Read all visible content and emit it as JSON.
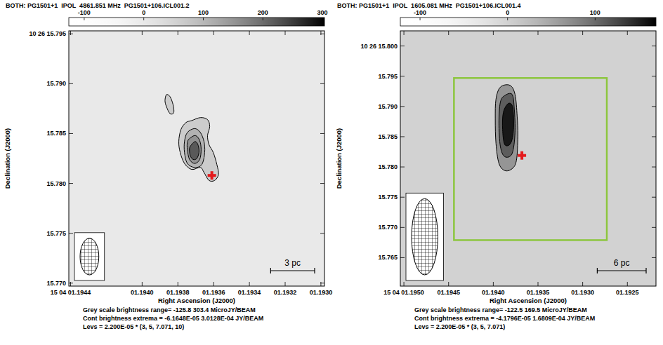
{
  "chart_data": [
    {
      "type": "contour",
      "title": "BOTH: PG1501+1  IPOL  4861.851 MHz  PG1501+106.ICL001.2",
      "x_label": "Right Ascension (J2000)",
      "y_label": "Declination (J2000)",
      "xlim": [
        1.19441,
        1.19298
      ],
      "xticks": [
        {
          "value": 1.1944,
          "label": "15 04 01.1944"
        },
        {
          "value": 1.194,
          "label": "01.1940"
        },
        {
          "value": 1.1938,
          "label": "01.1938"
        },
        {
          "value": 1.1936,
          "label": "01.1936"
        },
        {
          "value": 1.1934,
          "label": "01.1934"
        },
        {
          "value": 1.1932,
          "label": "01.1932"
        },
        {
          "value": 1.193,
          "label": "01.1930"
        }
      ],
      "ylim": [
        15.7697,
        15.7953
      ],
      "yticks": [
        {
          "value": 15.795,
          "label": "10 26 15.795"
        },
        {
          "value": 15.79,
          "label": "15.790"
        },
        {
          "value": 15.785,
          "label": "15.785"
        },
        {
          "value": 15.78,
          "label": "15.780"
        },
        {
          "value": 15.775,
          "label": "15.775"
        },
        {
          "value": 15.77,
          "label": "15.770"
        }
      ],
      "colorbar": {
        "range": [
          -125.8,
          303.4
        ],
        "ticks": [
          -100,
          0,
          100,
          200,
          300
        ]
      },
      "captions": [
        "Grey scale brightness range= -125.8 303.4 MicroJY/BEAM",
        "Cont brightness extrema = -6.1648E-05 3.0128E-04 JY/BEAM",
        "Levs = 2.200E-05 * (3, 5, 7.071, 10)"
      ],
      "contour_base": 2.2e-05,
      "levels": [
        3,
        5,
        7.071,
        10
      ],
      "contours": [
        {
          "level": 3,
          "points": [
            [
              1.193723,
              15.7863
            ],
            [
              1.193674,
              15.7866
            ],
            [
              1.193634,
              15.7864
            ],
            [
              1.193622,
              15.7857
            ],
            [
              1.193634,
              15.7848
            ],
            [
              1.193626,
              15.7839
            ],
            [
              1.193602,
              15.7831
            ],
            [
              1.193582,
              15.7819
            ],
            [
              1.193573,
              15.7809
            ],
            [
              1.193594,
              15.7803
            ],
            [
              1.193626,
              15.7803
            ],
            [
              1.193654,
              15.7811
            ],
            [
              1.193674,
              15.7816
            ],
            [
              1.193723,
              15.7814
            ],
            [
              1.193763,
              15.782
            ],
            [
              1.193787,
              15.7831
            ],
            [
              1.193795,
              15.7842
            ],
            [
              1.193783,
              15.7854
            ],
            [
              1.193755,
              15.7861
            ]
          ]
        },
        {
          "level": 3,
          "points": [
            [
              1.193864,
              15.7889
            ],
            [
              1.193844,
              15.7887
            ],
            [
              1.193827,
              15.7879
            ],
            [
              1.193823,
              15.7871
            ],
            [
              1.193844,
              15.787
            ],
            [
              1.193864,
              15.7877
            ],
            [
              1.193872,
              15.7883
            ]
          ]
        },
        {
          "level": 5,
          "points": [
            [
              1.193747,
              15.7851
            ],
            [
              1.193706,
              15.7855
            ],
            [
              1.193674,
              15.7851
            ],
            [
              1.193654,
              15.7842
            ],
            [
              1.19365,
              15.7831
            ],
            [
              1.193666,
              15.7819
            ],
            [
              1.193706,
              15.7816
            ],
            [
              1.193747,
              15.782
            ],
            [
              1.193763,
              15.7831
            ],
            [
              1.193763,
              15.7842
            ]
          ]
        },
        {
          "level": 7.071,
          "points": [
            [
              1.193735,
              15.7845
            ],
            [
              1.193702,
              15.7848
            ],
            [
              1.193678,
              15.7843
            ],
            [
              1.19367,
              15.7834
            ],
            [
              1.193678,
              15.7824
            ],
            [
              1.193706,
              15.782
            ],
            [
              1.193735,
              15.7824
            ],
            [
              1.193747,
              15.7834
            ],
            [
              1.193747,
              15.7841
            ]
          ]
        },
        {
          "level": 10,
          "points": [
            [
              1.193723,
              15.7839
            ],
            [
              1.193702,
              15.7842
            ],
            [
              1.193686,
              15.7838
            ],
            [
              1.193682,
              15.7831
            ],
            [
              1.193694,
              15.7825
            ],
            [
              1.193715,
              15.7824
            ],
            [
              1.193731,
              15.7828
            ],
            [
              1.193735,
              15.7835
            ]
          ]
        }
      ],
      "target": {
        "x": 1.19361,
        "y": 15.7808,
        "color": "#e41a1c",
        "marker": "plus"
      },
      "beam": {
        "width": 0.000105,
        "height": 0.00367
      },
      "scale_bar": {
        "label": "3 pc",
        "length": 0.000246
      }
    },
    {
      "type": "contour",
      "title": "BOTH: PG1501+1  IPOL  1605.081 MHz  PG1501+106.ICL001.4",
      "x_label": "Right Ascension (J2000)",
      "y_label": "Declination (J2000)",
      "xlim": [
        1.19504,
        1.19218
      ],
      "xticks": [
        {
          "value": 1.195,
          "label": "15 04 01.1950"
        },
        {
          "value": 1.1945,
          "label": "01.1945"
        },
        {
          "value": 1.194,
          "label": "01.1940"
        },
        {
          "value": 1.1935,
          "label": "01.1935"
        },
        {
          "value": 1.193,
          "label": "01.1930"
        },
        {
          "value": 1.1925,
          "label": "01.1925"
        }
      ],
      "ylim": [
        15.7603,
        15.8025
      ],
      "yticks": [
        {
          "value": 15.8,
          "label": "10 26 15.800"
        },
        {
          "value": 15.795,
          "label": "15.795"
        },
        {
          "value": 15.79,
          "label": "15.790"
        },
        {
          "value": 15.785,
          "label": "15.785"
        },
        {
          "value": 15.78,
          "label": "15.780"
        },
        {
          "value": 15.775,
          "label": "15.775"
        },
        {
          "value": 15.77,
          "label": "15.770"
        },
        {
          "value": 15.765,
          "label": "15.765"
        }
      ],
      "colorbar": {
        "range": [
          -122.5,
          169.5
        ],
        "ticks": [
          -100,
          0,
          100
        ]
      },
      "captions": [
        "Grey scale brightness range= -122.5 169.5 MicroJY/BEAM",
        "Cont brightness extrema = -4.1796E-05 1.6809E-04 JY/BEAM",
        "Levs = 2.200E-05 * (3, 5, 7.071)"
      ],
      "contour_base": 2.2e-05,
      "levels": [
        3,
        5,
        7.071
      ],
      "contours": [
        {
          "level": 3,
          "points": [
            [
              1.193921,
              15.7932
            ],
            [
              1.193814,
              15.7935
            ],
            [
              1.193757,
              15.792
            ],
            [
              1.193733,
              15.7884
            ],
            [
              1.193725,
              15.7851
            ],
            [
              1.193741,
              15.7811
            ],
            [
              1.19379,
              15.7797
            ],
            [
              1.193872,
              15.7794
            ],
            [
              1.193937,
              15.7806
            ],
            [
              1.19397,
              15.7839
            ],
            [
              1.193978,
              15.7879
            ],
            [
              1.19397,
              15.7912
            ]
          ]
        },
        {
          "level": 5,
          "points": [
            [
              1.193872,
              15.7918
            ],
            [
              1.19379,
              15.792
            ],
            [
              1.193765,
              15.7896
            ],
            [
              1.193757,
              15.7856
            ],
            [
              1.19379,
              15.7822
            ],
            [
              1.193872,
              15.7817
            ],
            [
              1.193921,
              15.7834
            ],
            [
              1.193937,
              15.7873
            ],
            [
              1.193921,
              15.7907
            ]
          ]
        },
        {
          "level": 7.071,
          "points": [
            [
              1.193831,
              15.7905
            ],
            [
              1.193782,
              15.7898
            ],
            [
              1.193774,
              15.7862
            ],
            [
              1.193806,
              15.7839
            ],
            [
              1.193872,
              15.7837
            ],
            [
              1.193896,
              15.7862
            ],
            [
              1.193888,
              15.789
            ]
          ]
        }
      ],
      "target": {
        "x": 1.19368,
        "y": 15.7819,
        "color": "#e41a1c",
        "marker": "plus"
      },
      "region": {
        "x": [
          1.19444,
          1.19273
        ],
        "y": [
          15.7947,
          15.7679
        ],
        "color": "#8dc63f"
      },
      "beam": {
        "width": 0.000294,
        "height": 0.0126
      },
      "scale_bar": {
        "label": "6 pc",
        "length": 0.000547
      }
    }
  ]
}
